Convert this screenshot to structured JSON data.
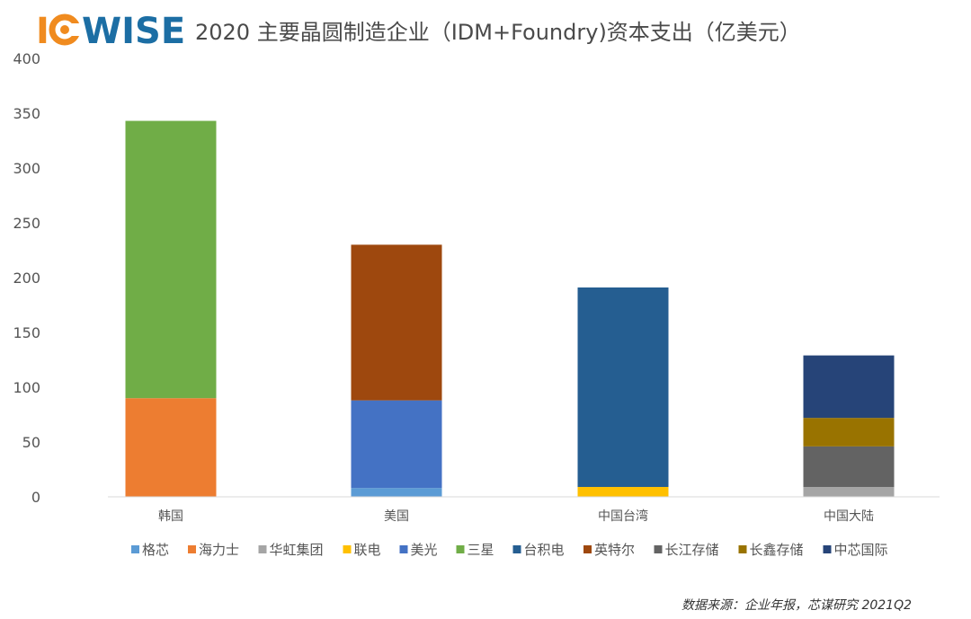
{
  "logo": {
    "text_i": "I",
    "text_rest": "WISE",
    "color_i": "#f08b1f",
    "color_rest": "#1c6ea4"
  },
  "chart_data": {
    "type": "bar",
    "stacked": true,
    "title": "2020 主要晶圆制造企业（IDM+Foundry)资本支出（亿美元）",
    "categories": [
      "韩国",
      "美国",
      "中国台湾",
      "中国大陆"
    ],
    "ylim": [
      0,
      400
    ],
    "yticks": [
      0,
      50,
      100,
      150,
      200,
      250,
      300,
      350,
      400
    ],
    "grid": false,
    "legend_position": "bottom",
    "series": [
      {
        "name": "格芯",
        "color": "#5b9bd5",
        "values": [
          0,
          8,
          0,
          0
        ]
      },
      {
        "name": "海力士",
        "color": "#ed7d31",
        "values": [
          90,
          0,
          0,
          0
        ]
      },
      {
        "name": "华虹集团",
        "color": "#a5a5a5",
        "values": [
          0,
          0,
          0,
          9
        ]
      },
      {
        "name": "联电",
        "color": "#ffc000",
        "values": [
          0,
          0,
          9,
          0
        ]
      },
      {
        "name": "美光",
        "color": "#4472c4",
        "values": [
          0,
          80,
          0,
          0
        ]
      },
      {
        "name": "三星",
        "color": "#70ad47",
        "values": [
          253,
          0,
          0,
          0
        ]
      },
      {
        "name": "台积电",
        "color": "#255e91",
        "values": [
          0,
          0,
          182,
          0
        ]
      },
      {
        "name": "英特尔",
        "color": "#9e480e",
        "values": [
          0,
          142,
          0,
          0
        ]
      },
      {
        "name": "长江存储",
        "color": "#636363",
        "values": [
          0,
          0,
          0,
          37
        ]
      },
      {
        "name": "长鑫存储",
        "color": "#997300",
        "values": [
          0,
          0,
          0,
          26
        ]
      },
      {
        "name": "中芯国际",
        "color": "#264478",
        "values": [
          0,
          0,
          0,
          57
        ]
      }
    ]
  },
  "source": "数据来源：企业年报，芯谋研究 2021Q2"
}
